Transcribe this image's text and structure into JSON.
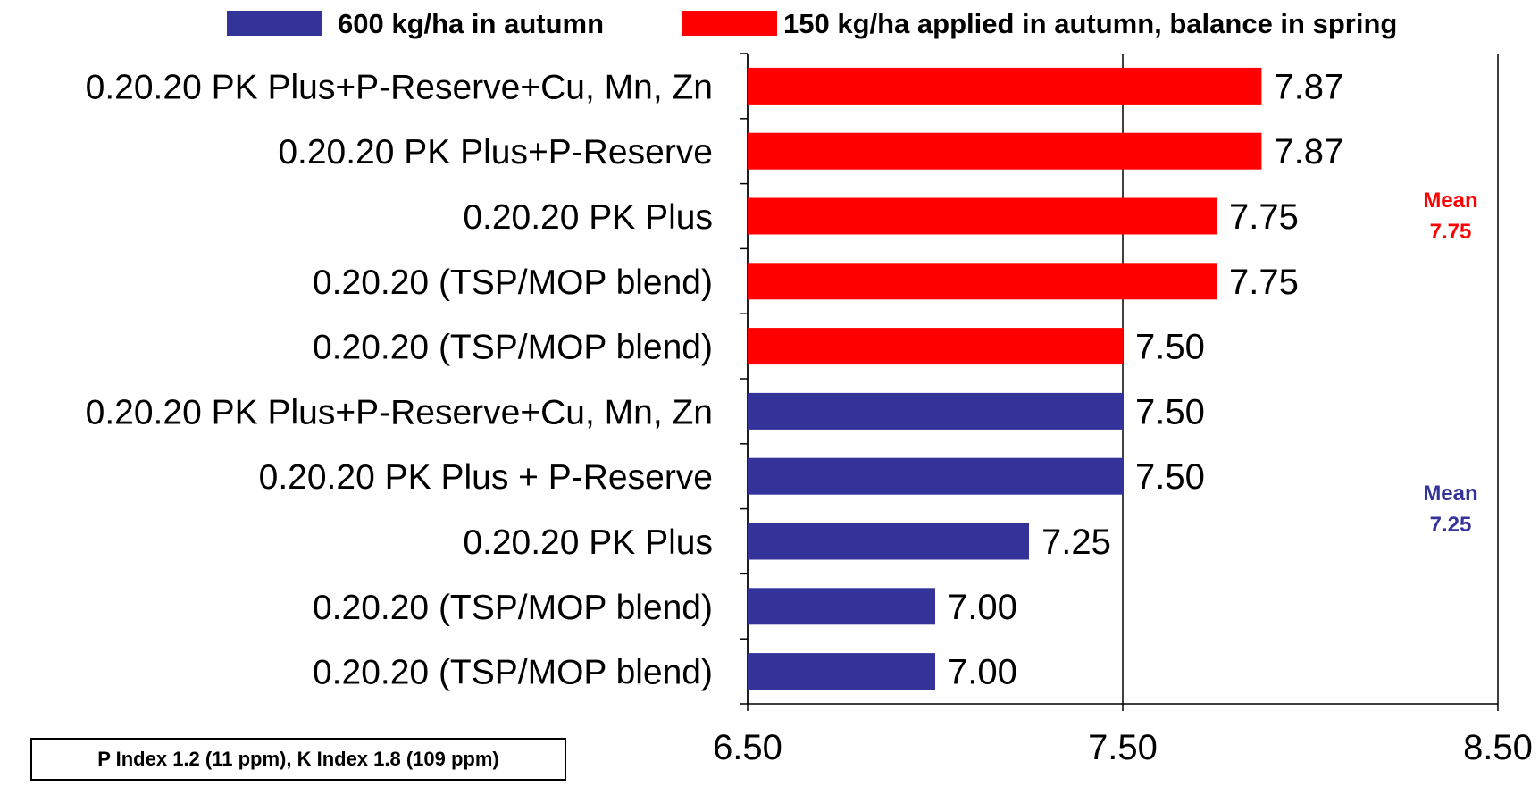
{
  "chart_data": {
    "type": "bar",
    "orientation": "horizontal",
    "categories": [
      "0.20.20 PK Plus+P-Reserve+Cu, Mn, Zn",
      "0.20.20 PK Plus+P-Reserve",
      "0.20.20 PK Plus",
      "0.20.20 (TSP/MOP blend)",
      "0.20.20 (TSP/MOP blend)",
      "0.20.20 PK Plus+P-Reserve+Cu, Mn, Zn",
      "0.20.20 PK Plus + P-Reserve",
      "0.20.20 PK Plus",
      "0.20.20 (TSP/MOP blend)",
      "0.20.20 (TSP/MOP blend)"
    ],
    "values": [
      7.87,
      7.87,
      7.75,
      7.75,
      7.5,
      7.5,
      7.5,
      7.25,
      7.0,
      7.0
    ],
    "value_labels": [
      "7.87",
      "7.87",
      "7.75",
      "7.75",
      "7.50",
      "7.50",
      "7.50",
      "7.25",
      "7.00",
      "7.00"
    ],
    "bar_series": [
      1,
      1,
      1,
      1,
      1,
      0,
      0,
      0,
      0,
      0
    ],
    "series": [
      {
        "name": "600 kg/ha in autumn",
        "color": "#333399"
      },
      {
        "name": "150 kg/ha applied in autumn, balance in spring",
        "color": "#ff0000"
      }
    ],
    "xlim": [
      6.5,
      8.5
    ],
    "x_ticks": [
      6.5,
      7.5,
      8.5
    ],
    "x_tick_labels": [
      "6.50",
      "7.50",
      "8.50"
    ],
    "grid": "vertical",
    "legend_position": "top",
    "title": "",
    "xlabel": "",
    "ylabel": "",
    "annotations": [
      {
        "line1": "Mean",
        "line2": "7.75",
        "color": "#ff0000",
        "value": 7.75
      },
      {
        "line1": "Mean",
        "line2": "7.25",
        "color": "#333399",
        "value": 7.25
      }
    ]
  },
  "note": "P Index 1.2 (11 ppm), K Index 1.8 (109 ppm)"
}
